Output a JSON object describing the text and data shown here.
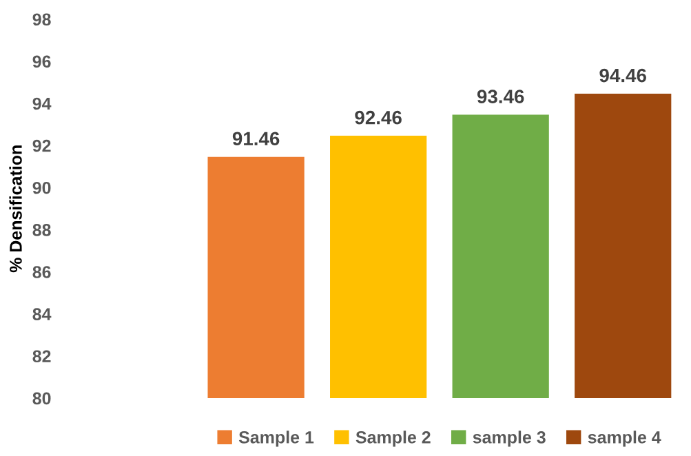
{
  "chart_data": {
    "type": "bar",
    "ylabel": "% Densification",
    "categories": [
      null
    ],
    "series": [
      {
        "name": "Sample 1",
        "color": "#ed7d31",
        "values": [
          91.46
        ]
      },
      {
        "name": "Sample 2",
        "color": "#ffc000",
        "values": [
          92.46
        ]
      },
      {
        "name": "sample 3",
        "color": "#70ad47",
        "values": [
          93.46
        ]
      },
      {
        "name": "sample 4",
        "color": "#9e480e",
        "values": [
          94.46
        ]
      }
    ],
    "ylim": [
      80,
      98
    ],
    "yticks": [
      80,
      82,
      84,
      86,
      88,
      90,
      92,
      94,
      96,
      98
    ],
    "data_labels": true,
    "legend": "bottom",
    "grid": false,
    "tick_labels": "y"
  }
}
